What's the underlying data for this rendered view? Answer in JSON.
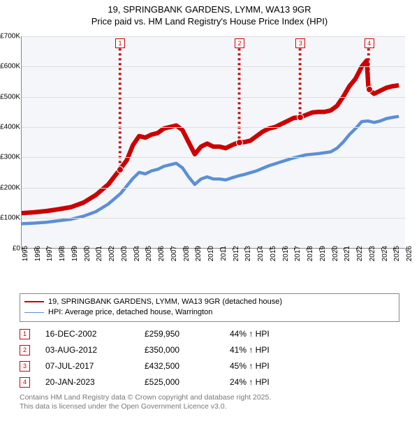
{
  "title": {
    "line1": "19, SPRINGBANK GARDENS, LYMM, WA13 9GR",
    "line2": "Price paid vs. HM Land Registry's House Price Index (HPI)"
  },
  "chart": {
    "type": "line",
    "background_color": "#f4f6fa",
    "grid_color": "#dddddd",
    "axis_color": "#888888",
    "x_years": [
      1995,
      1996,
      1997,
      1998,
      1999,
      2000,
      2001,
      2002,
      2003,
      2004,
      2005,
      2006,
      2007,
      2008,
      2009,
      2010,
      2011,
      2012,
      2013,
      2014,
      2015,
      2016,
      2017,
      2018,
      2019,
      2020,
      2021,
      2022,
      2023,
      2024,
      2025,
      2026
    ],
    "xlim": [
      1995,
      2026
    ],
    "ylim": [
      0,
      700
    ],
    "ytick_step": 100,
    "yticks": [
      "£0",
      "£100K",
      "£200K",
      "£300K",
      "£400K",
      "£500K",
      "£600K",
      "£700K"
    ],
    "series": [
      {
        "name": "red",
        "color": "#cc0000",
        "width": 2,
        "points": [
          [
            1995,
            115
          ],
          [
            1996,
            118
          ],
          [
            1997,
            122
          ],
          [
            1998,
            128
          ],
          [
            1999,
            135
          ],
          [
            2000,
            150
          ],
          [
            2001,
            175
          ],
          [
            2002,
            210
          ],
          [
            2002.95,
            260
          ],
          [
            2003.5,
            290
          ],
          [
            2004,
            340
          ],
          [
            2004.5,
            370
          ],
          [
            2005,
            365
          ],
          [
            2005.5,
            375
          ],
          [
            2006,
            380
          ],
          [
            2006.5,
            395
          ],
          [
            2007,
            400
          ],
          [
            2007.5,
            405
          ],
          [
            2008,
            390
          ],
          [
            2008.5,
            350
          ],
          [
            2009,
            310
          ],
          [
            2009.5,
            335
          ],
          [
            2010,
            345
          ],
          [
            2010.5,
            335
          ],
          [
            2011,
            335
          ],
          [
            2011.5,
            330
          ],
          [
            2012,
            340
          ],
          [
            2012.59,
            350
          ],
          [
            2013,
            350
          ],
          [
            2013.5,
            355
          ],
          [
            2014,
            370
          ],
          [
            2014.5,
            385
          ],
          [
            2015,
            395
          ],
          [
            2015.5,
            400
          ],
          [
            2016,
            410
          ],
          [
            2016.5,
            420
          ],
          [
            2017,
            430
          ],
          [
            2017.51,
            432
          ],
          [
            2018,
            440
          ],
          [
            2018.5,
            448
          ],
          [
            2019,
            450
          ],
          [
            2019.5,
            450
          ],
          [
            2020,
            455
          ],
          [
            2020.5,
            470
          ],
          [
            2021,
            500
          ],
          [
            2021.5,
            535
          ],
          [
            2022,
            560
          ],
          [
            2022.5,
            600
          ],
          [
            2022.9,
            620
          ],
          [
            2023.05,
            525
          ],
          [
            2023.5,
            510
          ],
          [
            2024,
            520
          ],
          [
            2024.5,
            530
          ],
          [
            2025,
            535
          ],
          [
            2025.5,
            538
          ]
        ]
      },
      {
        "name": "blue",
        "color": "#5b8fd6",
        "width": 1.4,
        "points": [
          [
            1995,
            80
          ],
          [
            1996,
            82
          ],
          [
            1997,
            85
          ],
          [
            1998,
            90
          ],
          [
            1999,
            95
          ],
          [
            2000,
            105
          ],
          [
            2001,
            120
          ],
          [
            2002,
            145
          ],
          [
            2003,
            180
          ],
          [
            2004,
            230
          ],
          [
            2004.5,
            250
          ],
          [
            2005,
            245
          ],
          [
            2005.5,
            255
          ],
          [
            2006,
            260
          ],
          [
            2006.5,
            270
          ],
          [
            2007,
            275
          ],
          [
            2007.5,
            280
          ],
          [
            2008,
            265
          ],
          [
            2008.5,
            235
          ],
          [
            2009,
            210
          ],
          [
            2009.5,
            228
          ],
          [
            2010,
            235
          ],
          [
            2010.5,
            228
          ],
          [
            2011,
            228
          ],
          [
            2011.5,
            225
          ],
          [
            2012,
            232
          ],
          [
            2012.5,
            238
          ],
          [
            2013,
            243
          ],
          [
            2014,
            255
          ],
          [
            2015,
            272
          ],
          [
            2016,
            285
          ],
          [
            2017,
            298
          ],
          [
            2018,
            308
          ],
          [
            2019,
            312
          ],
          [
            2020,
            318
          ],
          [
            2020.5,
            330
          ],
          [
            2021,
            350
          ],
          [
            2021.5,
            375
          ],
          [
            2022,
            395
          ],
          [
            2022.5,
            418
          ],
          [
            2023,
            420
          ],
          [
            2023.5,
            415
          ],
          [
            2024,
            420
          ],
          [
            2024.5,
            428
          ],
          [
            2025,
            432
          ],
          [
            2025.5,
            435
          ]
        ]
      }
    ],
    "sale_markers": [
      {
        "n": "1",
        "x": 2002.95,
        "y": 260,
        "top_y": 660
      },
      {
        "n": "2",
        "x": 2012.59,
        "y": 350,
        "top_y": 660
      },
      {
        "n": "3",
        "x": 2017.51,
        "y": 432,
        "top_y": 660
      },
      {
        "n": "4",
        "x": 2023.05,
        "y": 525,
        "top_y": 660
      }
    ],
    "dot_color": "#cc0000",
    "dot_stroke": "#ffffff"
  },
  "legend": {
    "rows": [
      {
        "color": "#cc0000",
        "width": 2.5,
        "label": "19, SPRINGBANK GARDENS, LYMM, WA13 9GR (detached house)"
      },
      {
        "color": "#5b8fd6",
        "width": 1.5,
        "label": "HPI: Average price, detached house, Warrington"
      }
    ]
  },
  "sales": [
    {
      "n": "1",
      "date": "16-DEC-2002",
      "price": "£259,950",
      "pct": "44% ↑ HPI"
    },
    {
      "n": "2",
      "date": "03-AUG-2012",
      "price": "£350,000",
      "pct": "41% ↑ HPI"
    },
    {
      "n": "3",
      "date": "07-JUL-2017",
      "price": "£432,500",
      "pct": "45% ↑ HPI"
    },
    {
      "n": "4",
      "date": "20-JAN-2023",
      "price": "£525,000",
      "pct": "24% ↑ HPI"
    }
  ],
  "footer": {
    "line1": "Contains HM Land Registry data © Crown copyright and database right 2025.",
    "line2": "This data is licensed under the Open Government Licence v3.0."
  }
}
